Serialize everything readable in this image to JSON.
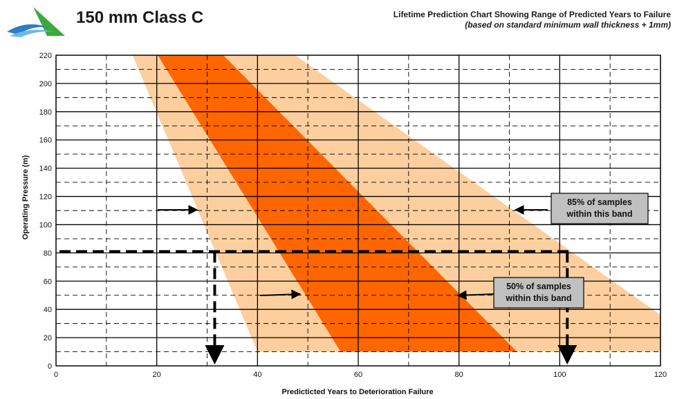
{
  "header": {
    "product_title": "150 mm Class C",
    "chart_title": "Lifetime Prediction Chart Showing Range of Predicted Years to Failure",
    "chart_subtitle": "(based on standard minimum wall thickness + 1mm)",
    "logo_icon": "wave-logo-icon"
  },
  "chart_data": {
    "type": "area",
    "xlabel": "Predicticted Years to Deterioration Failure",
    "ylabel": "Operating Pressure (m)",
    "xlim": [
      0,
      120
    ],
    "ylim": [
      0,
      220
    ],
    "x_ticks": [
      "0",
      "20",
      "40",
      "60",
      "80",
      "100",
      "120"
    ],
    "y_ticks": [
      "0",
      "20",
      "40",
      "60",
      "80",
      "100",
      "120",
      "140",
      "160",
      "180",
      "200",
      "220"
    ],
    "grid": true,
    "bands": [
      {
        "label": "85% of samples within this band",
        "color": "#fdcf9f",
        "polygon": [
          [
            15.2,
            220
          ],
          [
            47.5,
            220
          ],
          [
            120,
            36
          ],
          [
            120,
            10
          ],
          [
            40,
            10
          ]
        ]
      },
      {
        "label": "50% of samples within this band",
        "color": "#ff6600",
        "polygon": [
          [
            20.2,
            220
          ],
          [
            33.2,
            220
          ],
          [
            91.5,
            10
          ],
          [
            56.5,
            10
          ]
        ]
      }
    ],
    "reference_pressure": 81,
    "reference_years": [
      31.5,
      101.5
    ],
    "annotations": [
      {
        "text_lines": [
          "85% of samples",
          "within this band"
        ]
      },
      {
        "text_lines": [
          "50% of samples",
          "within this band"
        ]
      }
    ],
    "colors": {
      "outer_band": "#fdcf9f",
      "inner_band": "#ff6600",
      "label_box": "#c0c0c0"
    }
  }
}
